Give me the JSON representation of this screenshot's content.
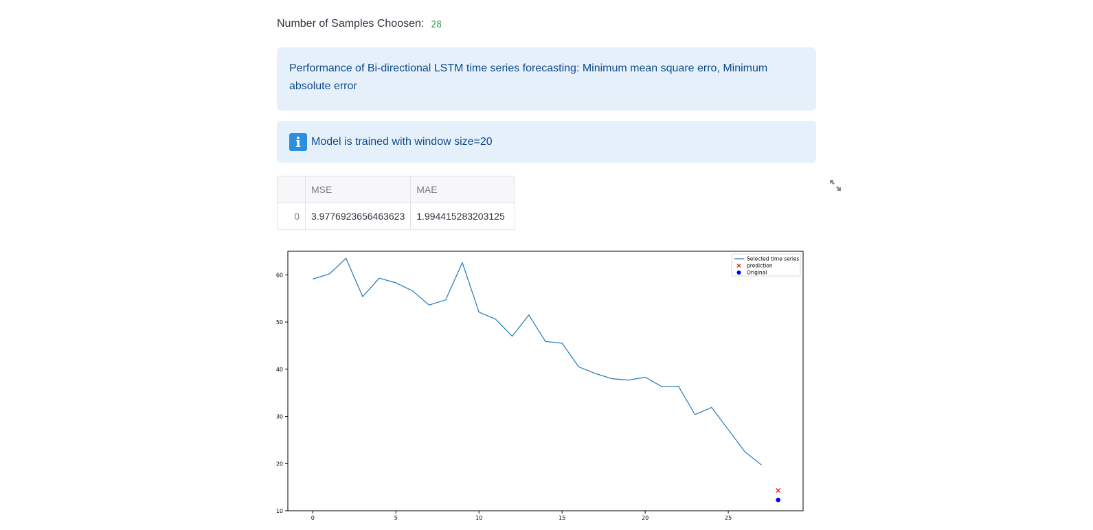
{
  "samples": {
    "label": "Number of Samples Choosen:",
    "value": "28"
  },
  "info_performance": "Performance of Bi-directional LSTM time series forecasting: Minimum mean square erro, Minimum absolute error",
  "info_window": {
    "icon": "info-icon",
    "text": "Model is trained with window size=20",
    "badge": "i"
  },
  "metrics_table": {
    "columns": [
      "",
      "MSE",
      "MAE"
    ],
    "rows": [
      {
        "index": "0",
        "mse": "3.9776923656463623",
        "mae": "1.994415283203125"
      }
    ]
  },
  "expand_icon": "expand-icon",
  "chart_data": {
    "type": "line",
    "xlim": [
      -1.5,
      29.5
    ],
    "ylim": [
      10,
      65
    ],
    "xticks": [
      0,
      5,
      10,
      15,
      20,
      25
    ],
    "yticks": [
      10,
      20,
      30,
      40,
      50,
      60
    ],
    "grid": false,
    "legend_position": "top-right",
    "series": [
      {
        "name": "Selected time series",
        "type": "line",
        "color": "#1f77b4",
        "x": [
          0,
          1,
          2,
          3,
          4,
          5,
          6,
          7,
          8,
          9,
          10,
          11,
          12,
          13,
          14,
          15,
          16,
          17,
          18,
          19,
          20,
          21,
          22,
          23,
          24,
          25,
          26,
          27
        ],
        "y": [
          59.1,
          60.2,
          63.5,
          55.4,
          59.3,
          58.3,
          56.6,
          53.6,
          54.7,
          62.6,
          52.1,
          50.6,
          47.0,
          51.5,
          45.9,
          45.5,
          40.5,
          39.1,
          38.0,
          37.7,
          38.3,
          36.3,
          36.4,
          30.4,
          31.9,
          27.2,
          22.5,
          19.7
        ]
      },
      {
        "name": "prediction",
        "type": "scatter",
        "marker": "x",
        "color": "#ff0000",
        "x": [
          28
        ],
        "y": [
          14.3
        ]
      },
      {
        "name": "Original",
        "type": "scatter",
        "marker": "o",
        "color": "#0000ff",
        "x": [
          28
        ],
        "y": [
          12.3
        ]
      }
    ]
  }
}
